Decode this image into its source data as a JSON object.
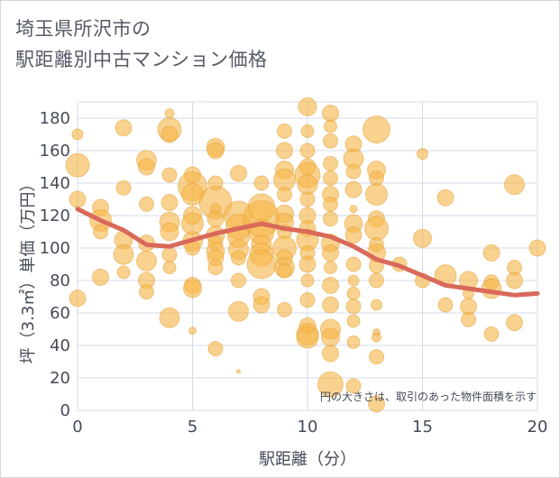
{
  "chart_data": {
    "type": "scatter",
    "title": "埼玉県所沢市の",
    "subtitle": "駅距離別中古マンション価格",
    "xlabel": "駅距離（分）",
    "ylabel": "坪（3.3㎡）単価（万円）",
    "annotation": "円の大きさは、取引のあった物件面積を示す",
    "xlim": [
      0,
      20
    ],
    "ylim": [
      0,
      190
    ],
    "xticks": [
      0,
      5,
      10,
      15,
      20
    ],
    "yticks": [
      0,
      20,
      40,
      60,
      80,
      100,
      120,
      140,
      160,
      180
    ],
    "grid": true,
    "colors": {
      "bubble": "#f5b74a",
      "trend": "#d9695a",
      "grid": "#d5dbe8",
      "text": "#444b57"
    },
    "series": [
      {
        "type": "bubble",
        "points": [
          [
            0,
            170,
            6
          ],
          [
            0,
            151,
            13
          ],
          [
            0,
            130,
            9
          ],
          [
            0,
            69,
            9
          ],
          [
            1,
            125,
            9
          ],
          [
            1,
            117,
            12
          ],
          [
            1,
            110,
            8
          ],
          [
            1,
            82,
            9
          ],
          [
            2,
            174,
            9
          ],
          [
            2,
            137,
            8
          ],
          [
            2,
            105,
            10
          ],
          [
            2,
            96,
            11
          ],
          [
            2,
            85,
            7
          ],
          [
            3,
            154,
            11
          ],
          [
            3,
            150,
            9
          ],
          [
            3,
            127,
            8
          ],
          [
            3,
            103,
            9
          ],
          [
            3,
            92,
            11
          ],
          [
            3,
            80,
            9
          ],
          [
            3,
            73,
            8
          ],
          [
            4,
            183,
            5
          ],
          [
            4,
            173,
            13
          ],
          [
            4,
            170,
            9
          ],
          [
            4,
            145,
            8
          ],
          [
            4,
            128,
            9
          ],
          [
            4,
            116,
            11
          ],
          [
            4,
            110,
            10
          ],
          [
            4,
            96,
            8
          ],
          [
            4,
            88,
            7
          ],
          [
            4,
            57,
            11
          ],
          [
            5,
            145,
            9
          ],
          [
            5,
            138,
            16
          ],
          [
            5,
            133,
            12
          ],
          [
            5,
            120,
            10
          ],
          [
            5,
            115,
            12
          ],
          [
            5,
            104,
            11
          ],
          [
            5,
            100,
            8
          ],
          [
            5,
            77,
            9
          ],
          [
            5,
            75,
            10
          ],
          [
            5,
            49,
            4
          ],
          [
            6,
            162,
            10
          ],
          [
            6,
            160,
            9
          ],
          [
            6,
            140,
            8
          ],
          [
            6,
            128,
            18
          ],
          [
            6,
            124,
            6
          ],
          [
            6,
            118,
            9
          ],
          [
            6,
            108,
            10
          ],
          [
            6,
            103,
            8
          ],
          [
            6,
            98,
            10
          ],
          [
            6,
            94,
            9
          ],
          [
            6,
            88,
            8
          ],
          [
            6,
            38,
            8
          ],
          [
            7,
            146,
            9
          ],
          [
            7,
            120,
            16
          ],
          [
            7,
            113,
            14
          ],
          [
            7,
            107,
            12
          ],
          [
            7,
            99,
            11
          ],
          [
            7,
            94,
            8
          ],
          [
            7,
            80,
            8
          ],
          [
            7,
            61,
            11
          ],
          [
            7,
            24,
            2
          ],
          [
            8,
            140,
            8
          ],
          [
            8,
            125,
            15
          ],
          [
            8,
            118,
            20
          ],
          [
            8,
            110,
            14
          ],
          [
            8,
            102,
            11
          ],
          [
            8,
            96,
            13
          ],
          [
            8,
            90,
            16
          ],
          [
            8,
            70,
            9
          ],
          [
            8,
            65,
            9
          ],
          [
            9,
            172,
            8
          ],
          [
            9,
            160,
            9
          ],
          [
            9,
            148,
            10
          ],
          [
            9,
            142,
            12
          ],
          [
            9,
            133,
            8
          ],
          [
            9,
            121,
            10
          ],
          [
            9,
            116,
            10
          ],
          [
            9,
            110,
            8
          ],
          [
            9,
            100,
            13
          ],
          [
            9,
            94,
            9
          ],
          [
            9,
            88,
            11
          ],
          [
            9,
            86,
            8
          ],
          [
            9,
            62,
            8
          ],
          [
            10,
            187,
            10
          ],
          [
            10,
            172,
            7
          ],
          [
            10,
            160,
            8
          ],
          [
            10,
            150,
            9
          ],
          [
            10,
            145,
            14
          ],
          [
            10,
            139,
            11
          ],
          [
            10,
            130,
            8
          ],
          [
            10,
            120,
            9
          ],
          [
            10,
            112,
            9
          ],
          [
            10,
            105,
            12
          ],
          [
            10,
            97,
            8
          ],
          [
            10,
            90,
            9
          ],
          [
            10,
            80,
            7
          ],
          [
            10,
            68,
            8
          ],
          [
            10,
            52,
            9
          ],
          [
            10,
            47,
            12
          ],
          [
            10,
            45,
            12
          ],
          [
            11,
            183,
            9
          ],
          [
            11,
            175,
            7
          ],
          [
            11,
            166,
            8
          ],
          [
            11,
            152,
            8
          ],
          [
            11,
            143,
            8
          ],
          [
            11,
            133,
            9
          ],
          [
            11,
            127,
            8
          ],
          [
            11,
            118,
            8
          ],
          [
            11,
            103,
            10
          ],
          [
            11,
            97,
            9
          ],
          [
            11,
            88,
            7
          ],
          [
            11,
            77,
            9
          ],
          [
            11,
            65,
            9
          ],
          [
            11,
            50,
            11
          ],
          [
            11,
            45,
            10
          ],
          [
            11,
            35,
            9
          ],
          [
            11,
            16,
            14
          ],
          [
            12,
            164,
            9
          ],
          [
            12,
            155,
            11
          ],
          [
            12,
            147,
            8
          ],
          [
            12,
            136,
            9
          ],
          [
            12,
            124,
            4
          ],
          [
            12,
            115,
            10
          ],
          [
            12,
            108,
            9
          ],
          [
            12,
            90,
            8
          ],
          [
            12,
            80,
            6
          ],
          [
            12,
            72,
            7
          ],
          [
            12,
            64,
            8
          ],
          [
            12,
            55,
            7
          ],
          [
            12,
            42,
            7
          ],
          [
            12,
            15,
            8
          ],
          [
            13,
            173,
            15
          ],
          [
            13,
            148,
            10
          ],
          [
            13,
            143,
            8
          ],
          [
            13,
            133,
            12
          ],
          [
            13,
            118,
            9
          ],
          [
            13,
            112,
            13
          ],
          [
            13,
            102,
            8
          ],
          [
            13,
            97,
            10
          ],
          [
            13,
            89,
            8
          ],
          [
            13,
            80,
            8
          ],
          [
            13,
            65,
            6
          ],
          [
            13,
            48,
            4
          ],
          [
            13,
            45,
            5
          ],
          [
            13,
            33,
            8
          ],
          [
            13,
            4,
            9
          ],
          [
            14,
            90,
            8
          ],
          [
            15,
            158,
            6
          ],
          [
            15,
            106,
            10
          ],
          [
            15,
            80,
            8
          ],
          [
            16,
            131,
            9
          ],
          [
            16,
            83,
            12
          ],
          [
            16,
            65,
            8
          ],
          [
            17,
            80,
            10
          ],
          [
            17,
            72,
            6
          ],
          [
            17,
            64,
            9
          ],
          [
            17,
            56,
            8
          ],
          [
            18,
            97,
            9
          ],
          [
            18,
            79,
            8
          ],
          [
            18,
            75,
            11
          ],
          [
            18,
            47,
            8
          ],
          [
            19,
            139,
            11
          ],
          [
            19,
            88,
            8
          ],
          [
            19,
            80,
            9
          ],
          [
            19,
            54,
            9
          ],
          [
            20,
            100,
            9
          ]
        ]
      },
      {
        "type": "line",
        "points": [
          [
            0,
            124
          ],
          [
            1,
            117
          ],
          [
            2,
            111
          ],
          [
            3,
            102
          ],
          [
            4,
            101
          ],
          [
            5,
            105
          ],
          [
            6,
            109
          ],
          [
            7,
            112
          ],
          [
            8,
            115
          ],
          [
            9,
            112
          ],
          [
            10,
            110
          ],
          [
            11,
            107
          ],
          [
            12,
            101
          ],
          [
            13,
            93
          ],
          [
            14,
            89
          ],
          [
            15,
            83
          ],
          [
            16,
            77
          ],
          [
            17,
            75
          ],
          [
            18,
            73
          ],
          [
            19,
            71
          ],
          [
            20,
            72
          ]
        ]
      }
    ]
  }
}
